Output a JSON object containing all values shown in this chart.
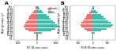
{
  "title_a": "A",
  "title_b": "B",
  "xlabel_a": "DS TB case count",
  "xlabel_b": "MDR TB case count",
  "ylabel": "Age groups (y)",
  "female_color": "#F07070",
  "male_color": "#3DBDB0",
  "age_groups": [
    "0-4",
    "5-9",
    "10-14",
    "15-19",
    "20-24",
    "25-29",
    "30-34",
    "35-39",
    "40-44",
    "45-49",
    "50-54",
    "55-59",
    "60-64",
    "65-69",
    "70-74",
    "75-79",
    "80+"
  ],
  "ds_female": [
    90,
    70,
    55,
    230,
    720,
    920,
    1050,
    980,
    920,
    820,
    720,
    600,
    490,
    360,
    240,
    140,
    95
  ],
  "ds_male": [
    70,
    55,
    45,
    380,
    1150,
    1450,
    1650,
    1550,
    1450,
    1250,
    1100,
    920,
    760,
    510,
    350,
    200,
    115
  ],
  "mdr_female": [
    4,
    3,
    2,
    8,
    38,
    58,
    78,
    82,
    78,
    68,
    58,
    48,
    38,
    22,
    14,
    7,
    4
  ],
  "mdr_male": [
    3,
    2,
    2,
    12,
    58,
    98,
    128,
    138,
    128,
    108,
    88,
    72,
    58,
    38,
    24,
    11,
    7
  ],
  "ds_xlim": 1800,
  "mdr_xlim": 155,
  "ds_xticks": [
    -1500,
    0,
    1500
  ],
  "mdr_xticks": [
    -100,
    0,
    100
  ],
  "legend_female": "Female",
  "legend_male": "Male",
  "background_color": "#ffffff"
}
